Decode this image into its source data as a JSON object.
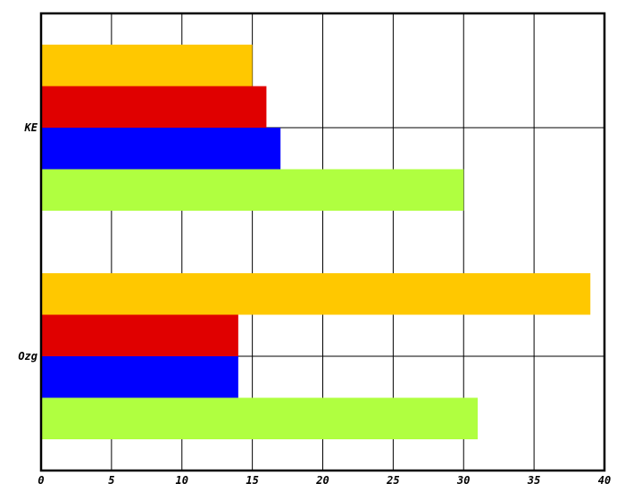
{
  "chart_data": {
    "type": "bar",
    "orientation": "horizontal",
    "categories": [
      "KE",
      "Ozg"
    ],
    "series": [
      {
        "values": [
          15,
          39
        ],
        "color": "#ffc800"
      },
      {
        "values": [
          16,
          14
        ],
        "color": "#e00000"
      },
      {
        "values": [
          17,
          14
        ],
        "color": "#0000ff"
      },
      {
        "values": [
          30,
          31
        ],
        "color": "#b0ff40"
      }
    ],
    "xlim": [
      0,
      40
    ],
    "xticks": [
      0,
      5,
      10,
      15,
      20,
      25,
      30,
      35,
      40
    ],
    "grid": true,
    "title": "",
    "xlabel": "",
    "ylabel": ""
  }
}
